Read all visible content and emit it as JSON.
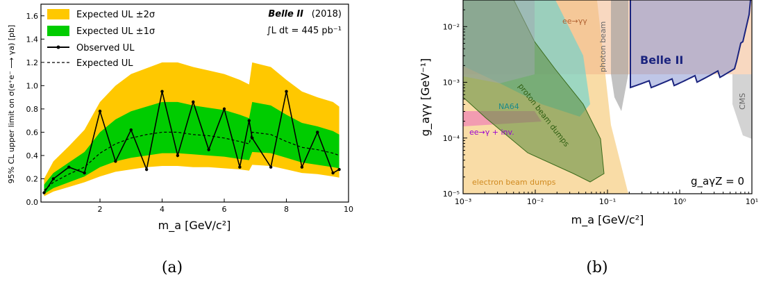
{
  "chart_data": [
    {
      "type": "area",
      "panel_caption": "(a)",
      "xlabel": "m_a [GeV/c²]",
      "ylabel": "95% CL upper limit on σ(e⁺e⁻ ⟶ γa) [pb]",
      "xlim": [
        0.1,
        10
      ],
      "ylim": [
        0.0,
        1.7
      ],
      "xticks": [
        "2",
        "4",
        "6",
        "8",
        "10"
      ],
      "yticks": [
        "0.0",
        "0.2",
        "0.4",
        "0.6",
        "0.8",
        "1.0",
        "1.2",
        "1.4",
        "1.6"
      ],
      "annotation_title": "Belle II",
      "annotation_year": "(2018)",
      "annotation_lumi": "∫L dt = 445 pb⁻¹",
      "legend": [
        "Expected UL ±2σ",
        "Expected UL ±1σ",
        "Observed UL",
        "Expected UL"
      ],
      "colors": {
        "band2": "#ffc800",
        "band1": "#00cc00",
        "observed": "#000000"
      },
      "x": [
        0.2,
        0.5,
        1.0,
        1.5,
        2.0,
        2.5,
        3.0,
        3.5,
        4.0,
        4.5,
        5.0,
        5.5,
        6.0,
        6.5,
        6.8,
        6.9,
        7.5,
        8.0,
        8.5,
        9.0,
        9.5,
        9.7
      ],
      "series": [
        {
          "name": "Expected UL",
          "values": [
            0.1,
            0.17,
            0.24,
            0.3,
            0.42,
            0.5,
            0.55,
            0.58,
            0.6,
            0.6,
            0.58,
            0.57,
            0.55,
            0.52,
            0.5,
            0.6,
            0.58,
            0.52,
            0.47,
            0.45,
            0.42,
            0.4
          ]
        },
        {
          "name": "Expected UL ±1σ low",
          "values": [
            0.07,
            0.12,
            0.17,
            0.22,
            0.3,
            0.35,
            0.38,
            0.4,
            0.42,
            0.42,
            0.41,
            0.4,
            0.39,
            0.37,
            0.36,
            0.43,
            0.42,
            0.38,
            0.34,
            0.32,
            0.3,
            0.29
          ]
        },
        {
          "name": "Expected UL ±1σ high",
          "values": [
            0.15,
            0.25,
            0.34,
            0.43,
            0.6,
            0.71,
            0.78,
            0.82,
            0.86,
            0.86,
            0.83,
            0.81,
            0.79,
            0.75,
            0.72,
            0.86,
            0.83,
            0.75,
            0.68,
            0.65,
            0.61,
            0.58
          ]
        },
        {
          "name": "Expected UL ±2σ low",
          "values": [
            0.05,
            0.09,
            0.13,
            0.17,
            0.22,
            0.26,
            0.28,
            0.3,
            0.31,
            0.31,
            0.3,
            0.3,
            0.29,
            0.28,
            0.27,
            0.32,
            0.31,
            0.28,
            0.25,
            0.24,
            0.22,
            0.21
          ]
        },
        {
          "name": "Expected UL ±2σ high",
          "values": [
            0.2,
            0.35,
            0.48,
            0.62,
            0.86,
            1.0,
            1.1,
            1.15,
            1.2,
            1.2,
            1.16,
            1.13,
            1.1,
            1.05,
            1.01,
            1.2,
            1.16,
            1.05,
            0.95,
            0.9,
            0.86,
            0.82
          ]
        },
        {
          "name": "Observed UL",
          "values": [
            0.08,
            0.2,
            0.3,
            0.25,
            0.78,
            0.35,
            0.62,
            0.28,
            0.95,
            0.4,
            0.86,
            0.45,
            0.8,
            0.3,
            0.7,
            0.55,
            0.3,
            0.95,
            0.3,
            0.6,
            0.25,
            0.28
          ]
        }
      ]
    },
    {
      "type": "area",
      "panel_caption": "(b)",
      "xlabel": "m_a [GeV/c²]",
      "ylabel": "g_aγγ [GeV⁻¹]",
      "xscale": "log",
      "yscale": "log",
      "xlim": [
        0.001,
        10
      ],
      "ylim": [
        1e-05,
        0.03
      ],
      "xticks": [
        "10⁻³",
        "10⁻²",
        "10⁻¹",
        "10⁰",
        "10¹"
      ],
      "yticks": [
        "10⁻⁵",
        "10⁻⁴",
        "10⁻³",
        "10⁻²"
      ],
      "corner_label": "g_aγZ = 0",
      "regions": [
        {
          "label": "electron beam dumps",
          "color": "#f5c46a"
        },
        {
          "label": "proton beam dumps",
          "color": "#5a8a3a"
        },
        {
          "label": "NA64",
          "color": "#5fd4d4"
        },
        {
          "label": "ee→γ + inv.",
          "color": "#f08cb4"
        },
        {
          "label": "ee→γγ",
          "color": "#f2b88c"
        },
        {
          "label": "photon beam",
          "color": "#9a9a9a"
        },
        {
          "label": "CMS",
          "color": "#c8c8c8"
        },
        {
          "label": "Belle II",
          "color": "#1a237e"
        }
      ]
    }
  ]
}
